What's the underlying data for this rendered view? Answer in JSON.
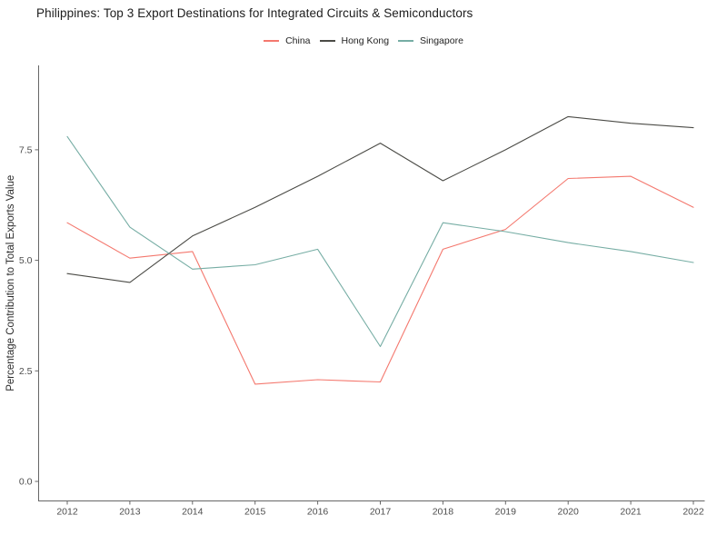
{
  "title": "Philippines: Top 3 Export Destinations for Integrated Circuits & Semiconductors",
  "legend": {
    "items": [
      {
        "label": "China",
        "color": "#f4786e"
      },
      {
        "label": "Hong Kong",
        "color": "#4b4b46"
      },
      {
        "label": "Singapore",
        "color": "#76ada4"
      }
    ]
  },
  "chart_data": {
    "type": "line",
    "title": "Philippines: Top 3 Export Destinations for Integrated Circuits & Semiconductors",
    "xlabel": "",
    "ylabel": "Percentage Contribution to Total Exports Value",
    "x": [
      2012,
      2013,
      2014,
      2015,
      2016,
      2017,
      2018,
      2019,
      2020,
      2021,
      2022
    ],
    "series": [
      {
        "name": "China",
        "color": "#f4786e",
        "values": [
          5.85,
          5.05,
          5.2,
          2.2,
          2.3,
          2.25,
          5.25,
          5.7,
          6.85,
          6.9,
          6.2
        ]
      },
      {
        "name": "Hong Kong",
        "color": "#4b4b46",
        "values": [
          4.7,
          4.5,
          5.55,
          6.2,
          6.9,
          7.65,
          6.8,
          7.5,
          8.25,
          8.1,
          8.0
        ]
      },
      {
        "name": "Singapore",
        "color": "#76ada4",
        "values": [
          7.8,
          5.75,
          4.8,
          4.9,
          5.25,
          3.05,
          5.85,
          5.65,
          5.4,
          5.2,
          4.95
        ]
      }
    ],
    "ylim": [
      0,
      9.4
    ],
    "yticks": [
      0.0,
      2.5,
      5.0,
      7.5
    ],
    "ytick_labels": [
      "0.0",
      "2.5",
      "5.0",
      "7.5"
    ],
    "grid": false,
    "legend_position": "top-center"
  },
  "style": {
    "axis_line_color": "#666666",
    "tick_label_color": "#4d4d4d",
    "axis_label_color": "#2b2b2b"
  }
}
